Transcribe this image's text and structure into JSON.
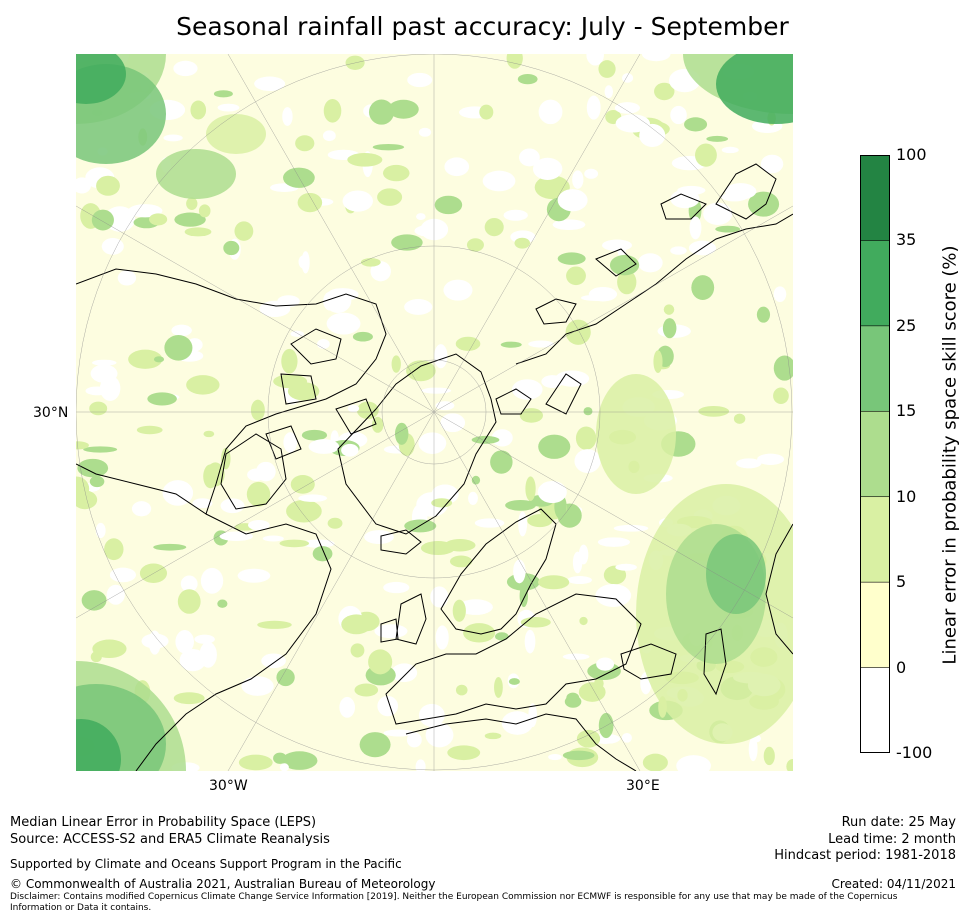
{
  "title": "Seasonal rainfall past accuracy: July - September",
  "map": {
    "lat_labels": [
      "30°N"
    ],
    "lon_labels": [
      "30°W",
      "30°E"
    ]
  },
  "colorbar": {
    "label": "Linear error in probability space skill score (%)",
    "ticks": [
      "100",
      "35",
      "25",
      "15",
      "10",
      "5",
      "0",
      "-100"
    ],
    "colors": [
      "#238443",
      "#41ab5d",
      "#78c679",
      "#addd8e",
      "#d9f0a3",
      "#ffffcc",
      "#ffffff"
    ]
  },
  "footer": {
    "left_line1": "Median Linear Error in Probability Space (LEPS)",
    "left_line2": "Source: ACCESS-S2 and ERA5 Climate Reanalysis",
    "support": "Supported by Climate and Oceans Support Program in the Pacific",
    "copyright": "© Commonwealth of Australia 2021, Australian Bureau of Meteorology",
    "disclaimer": "Disclaimer: Contains modified Copernicus Climate Change Service Information [2019]. Neither the European Commission nor ECMWF is responsible for any use that may be made of the Copernicus Information or Data it contains.",
    "run_date": "Run date: 25 May",
    "lead_time": "Lead time: 2 month",
    "hindcast": "Hindcast period: 1981-2018",
    "created": "Created: 04/11/2021"
  }
}
